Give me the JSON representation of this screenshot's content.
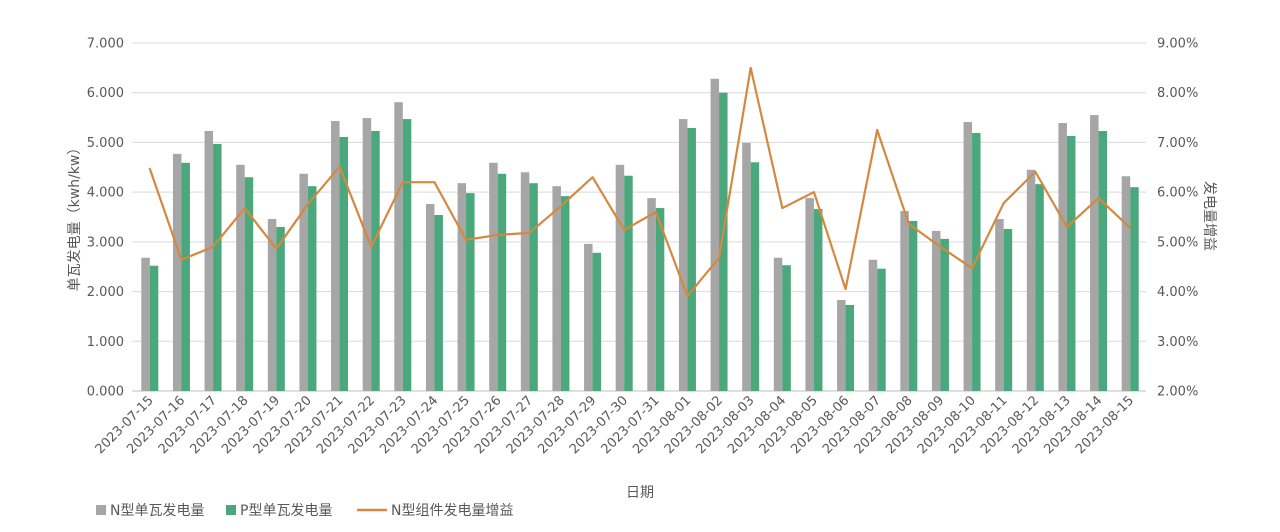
{
  "chart_data": {
    "type": "bar",
    "categories": [
      "2023-07-15",
      "2023-07-16",
      "2023-07-17",
      "2023-07-18",
      "2023-07-19",
      "2023-07-20",
      "2023-07-21",
      "2023-07-22",
      "2023-07-23",
      "2023-07-24",
      "2023-07-25",
      "2023-07-26",
      "2023-07-27",
      "2023-07-28",
      "2023-07-29",
      "2023-07-30",
      "2023-07-31",
      "2023-08-01",
      "2023-08-02",
      "2023-08-03",
      "2023-08-04",
      "2023-08-05",
      "2023-08-06",
      "2023-08-07",
      "2023-08-08",
      "2023-08-09",
      "2023-08-10",
      "2023-08-11",
      "2023-08-12",
      "2023-08-13",
      "2023-08-14",
      "2023-08-15"
    ],
    "series": [
      {
        "name": "N型单瓦发电量",
        "type": "bar",
        "axis": "left",
        "color": "#a6a6a6",
        "values": [
          2.68,
          4.77,
          5.23,
          4.55,
          3.46,
          4.37,
          5.43,
          5.49,
          5.81,
          3.76,
          4.18,
          4.59,
          4.4,
          4.12,
          2.96,
          4.55,
          3.88,
          5.47,
          6.28,
          4.99,
          2.68,
          3.88,
          1.83,
          2.64,
          3.62,
          3.22,
          5.41,
          3.46,
          4.45,
          5.39,
          5.55,
          4.32
        ]
      },
      {
        "name": "P型单瓦发电量",
        "type": "bar",
        "axis": "left",
        "color": "#4ba77c",
        "values": [
          2.52,
          4.59,
          4.97,
          4.3,
          3.3,
          4.12,
          5.11,
          5.23,
          5.47,
          3.54,
          3.98,
          4.37,
          4.18,
          3.92,
          2.78,
          4.33,
          3.68,
          5.29,
          6.0,
          4.6,
          2.53,
          3.66,
          1.73,
          2.46,
          3.42,
          3.06,
          5.19,
          3.26,
          4.16,
          5.13,
          5.23,
          4.1
        ]
      },
      {
        "name": "N型组件发电量增益",
        "type": "line",
        "axis": "right",
        "color": "#d5883f",
        "values": [
          6.47,
          4.64,
          4.9,
          5.68,
          4.86,
          5.76,
          6.51,
          4.9,
          6.2,
          6.2,
          5.04,
          5.14,
          5.18,
          5.72,
          6.3,
          5.24,
          5.6,
          3.91,
          4.68,
          8.5,
          5.68,
          6.0,
          4.05,
          7.25,
          5.36,
          4.9,
          4.47,
          5.78,
          6.41,
          5.3,
          5.88,
          5.28
        ]
      }
    ],
    "xlabel": "日期",
    "ylabel": "单瓦发电量（kwh/kw）",
    "y2label": "发电量增益",
    "ylim": [
      0,
      7
    ],
    "y2lim": [
      2,
      9
    ],
    "yticks": [
      "0.000",
      "1.000",
      "2.000",
      "3.000",
      "4.000",
      "5.000",
      "6.000",
      "7.000"
    ],
    "y2ticks": [
      "2.00%",
      "3.00%",
      "4.00%",
      "5.00%",
      "6.00%",
      "7.00%",
      "8.00%",
      "9.00%"
    ],
    "grid": true,
    "legend": "bottom-left"
  }
}
